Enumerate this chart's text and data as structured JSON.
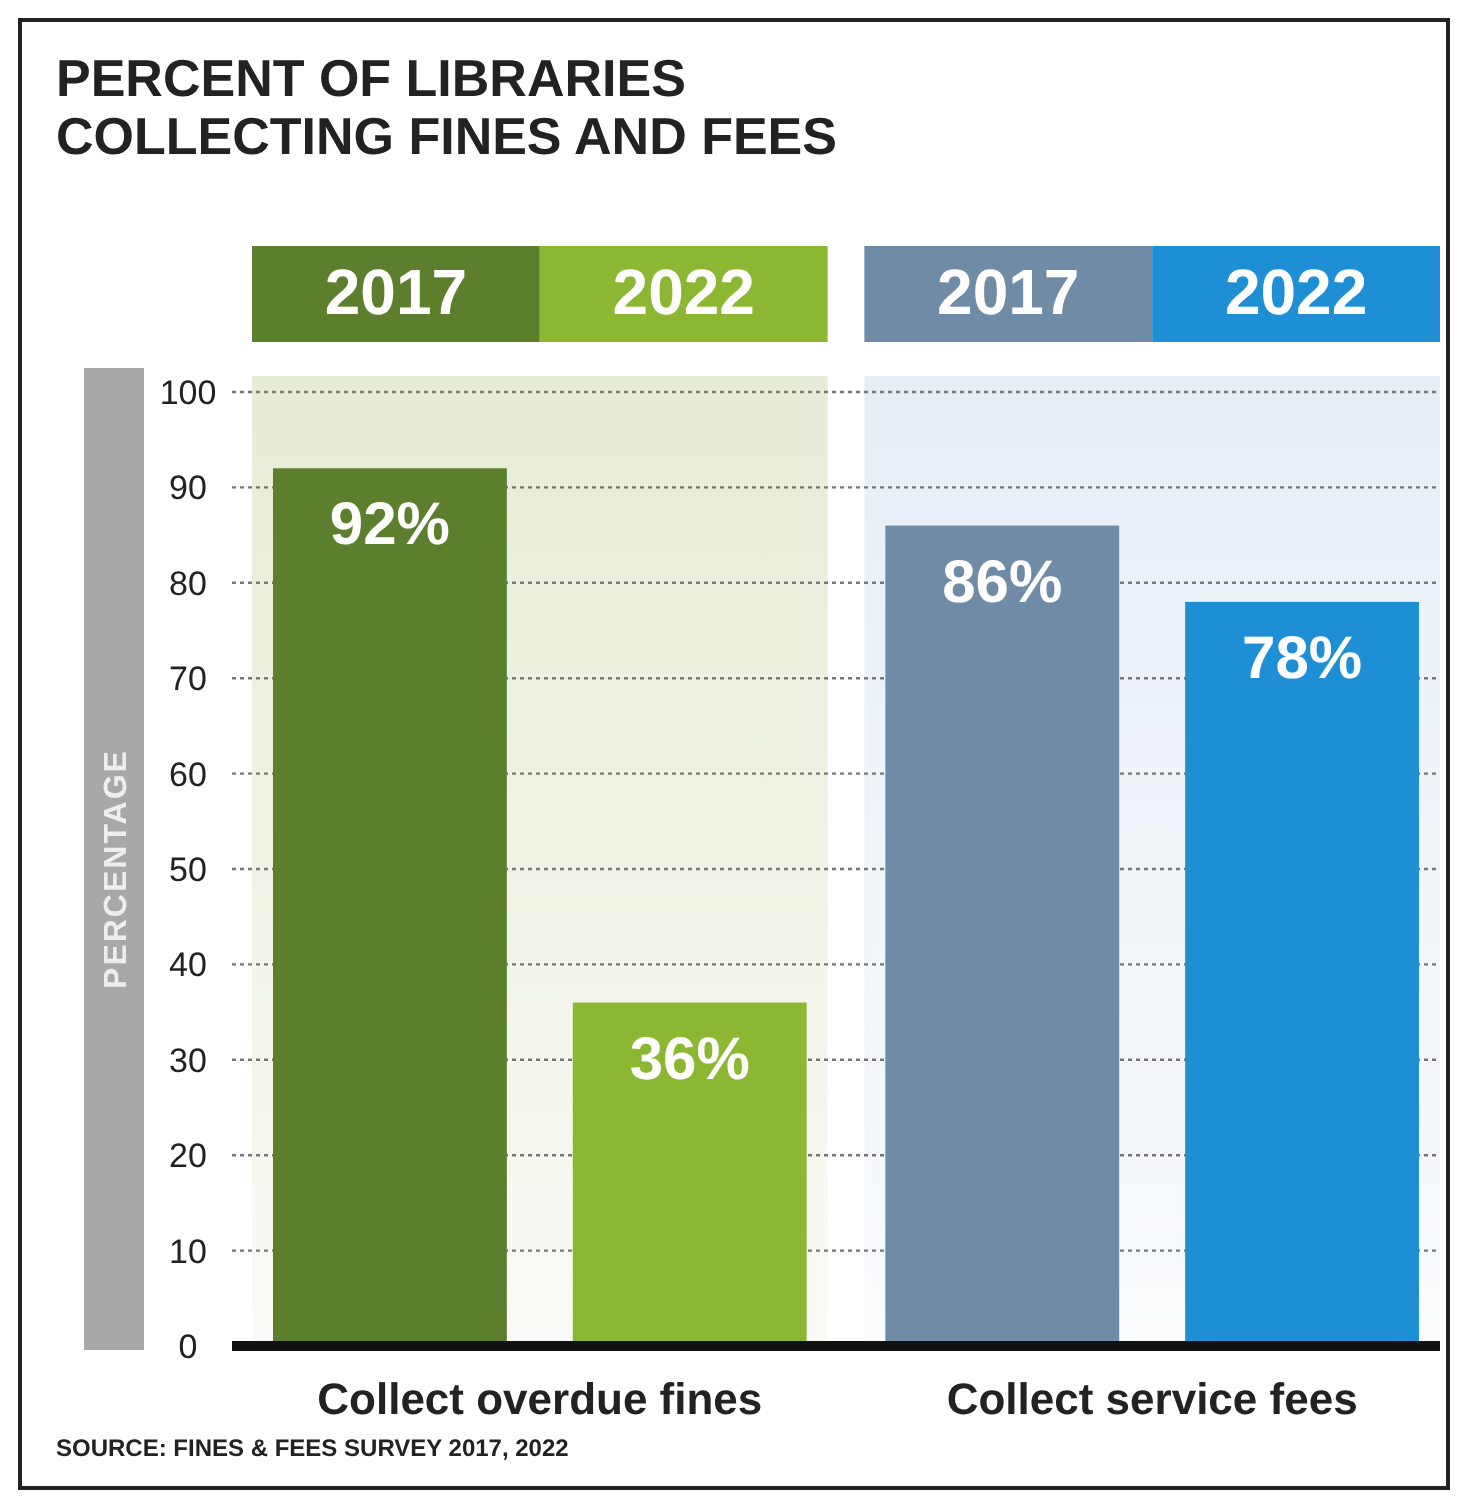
{
  "chart_data": {
    "type": "bar",
    "title": "PERCENT OF LIBRARIES COLLECTING FINES AND FEES",
    "ylabel": "PERCENTAGE",
    "categories": [
      "Collect overdue fines",
      "Collect service fees"
    ],
    "series": [
      {
        "name": "2017",
        "color": "#5b7f2c",
        "values": [
          92,
          null
        ],
        "value_labels": [
          "92%",
          null
        ]
      },
      {
        "name": "2022",
        "color": "#8cb732",
        "values": [
          36,
          null
        ],
        "value_labels": [
          "36%",
          null
        ]
      },
      {
        "name": "2017",
        "color": "#6f8ba6",
        "values": [
          null,
          86
        ],
        "value_labels": [
          null,
          "86%"
        ]
      },
      {
        "name": "2022",
        "color": "#1e8fd5",
        "values": [
          null,
          78
        ],
        "value_labels": [
          null,
          "78%"
        ]
      }
    ],
    "bands": [
      {
        "axis": "x",
        "from": "Collect overdue fines",
        "to": "Collect overdue fines",
        "color": "#e4ead2"
      },
      {
        "axis": "x",
        "from": "Collect service fees",
        "to": "Collect service fees",
        "color": "#e3edf5"
      }
    ],
    "ylim": [
      0,
      100
    ],
    "yticks": [
      0,
      10,
      20,
      30,
      40,
      50,
      60,
      70,
      80,
      90,
      100
    ],
    "grid": "y",
    "legend": "top",
    "annotations": [
      "SOURCE: FINES & FEES SURVEY 2017, 2022"
    ]
  }
}
